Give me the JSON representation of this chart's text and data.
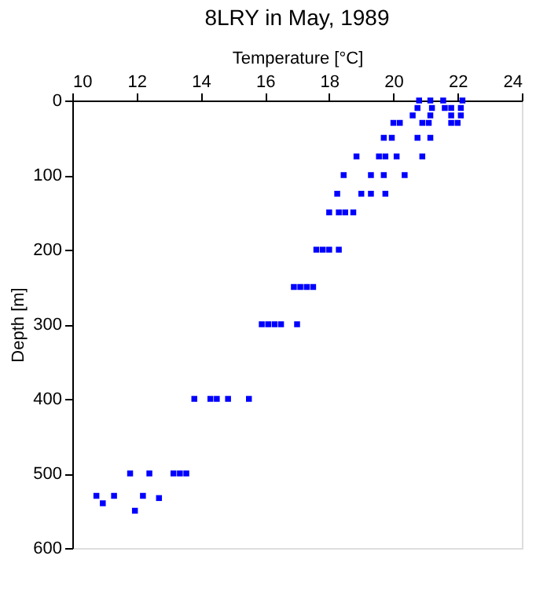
{
  "chart_data": {
    "type": "scatter",
    "title": "8LRY in May, 1989",
    "xlabel": "Temperature [°C]",
    "ylabel": "Depth [m]",
    "x": [
      20.8,
      21.15,
      21.55,
      22.15,
      20.75,
      21.2,
      21.6,
      21.8,
      22.1,
      20.6,
      21.15,
      21.8,
      22.1,
      20.0,
      20.2,
      20.9,
      21.1,
      21.8,
      22.0,
      19.7,
      19.95,
      20.75,
      21.15,
      18.85,
      19.55,
      19.75,
      20.1,
      20.9,
      18.45,
      19.3,
      19.7,
      20.35,
      18.25,
      19.0,
      19.3,
      19.75,
      18.0,
      18.3,
      18.5,
      18.75,
      17.6,
      17.8,
      18.0,
      18.3,
      16.9,
      17.1,
      17.3,
      17.5,
      15.9,
      16.1,
      16.3,
      16.5,
      17.0,
      13.8,
      14.3,
      14.5,
      14.85,
      15.5,
      11.8,
      12.4,
      13.15,
      13.35,
      13.55,
      10.75,
      11.3,
      12.2,
      12.7,
      10.95,
      11.95
    ],
    "values": [
      0,
      0,
      0,
      0,
      10,
      10,
      10,
      10,
      10,
      20,
      20,
      20,
      20,
      30,
      30,
      30,
      30,
      30,
      30,
      50,
      50,
      50,
      50,
      75,
      75,
      75,
      75,
      75,
      100,
      100,
      100,
      100,
      125,
      125,
      125,
      125,
      150,
      150,
      150,
      150,
      200,
      200,
      200,
      200,
      250,
      250,
      250,
      250,
      300,
      300,
      300,
      300,
      300,
      400,
      400,
      400,
      400,
      400,
      500,
      500,
      500,
      500,
      500,
      530,
      530,
      530,
      533,
      540,
      550
    ],
    "color": "#0000ff",
    "marker": "square",
    "grid": false,
    "xlim": [
      10,
      24
    ],
    "xticks": [
      10,
      12,
      14,
      16,
      18,
      20,
      22,
      24
    ],
    "ylim": [
      600,
      0
    ],
    "yticks": [
      0,
      100,
      200,
      300,
      400,
      500,
      600
    ]
  }
}
